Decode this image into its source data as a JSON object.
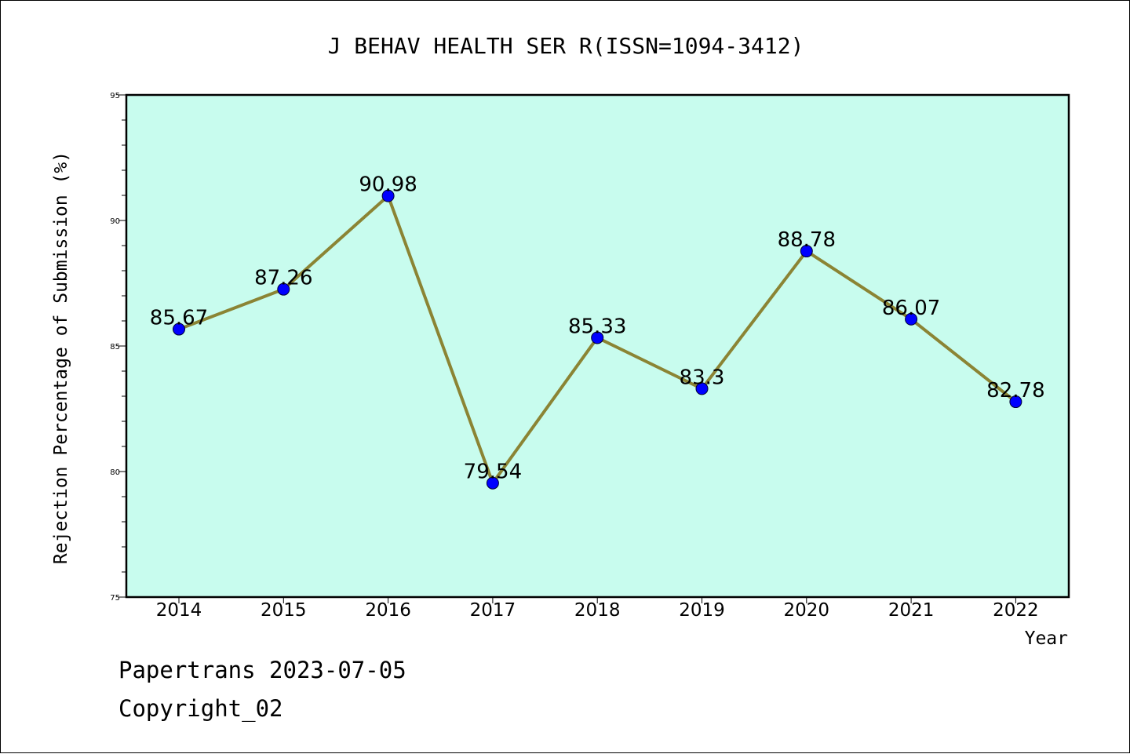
{
  "chart_data": {
    "type": "line",
    "title": "J BEHAV HEALTH SER R(ISSN=1094-3412)",
    "xlabel": "Year",
    "ylabel": "Rejection Percentage of Submission (%)",
    "categories": [
      "2014",
      "2015",
      "2016",
      "2017",
      "2018",
      "2019",
      "2020",
      "2021",
      "2022"
    ],
    "series": [
      {
        "values": [
          85.67,
          87.26,
          90.98,
          79.54,
          85.33,
          83.3,
          88.78,
          86.07,
          82.78
        ],
        "labels": [
          "85.67",
          "87.26",
          "90.98",
          "79.54",
          "85.33",
          "83.3",
          "88.78",
          "86.07",
          "82.78"
        ]
      }
    ],
    "ylim": [
      75,
      95
    ],
    "yticks": [
      75,
      80,
      85,
      90,
      95
    ],
    "grid": false,
    "legend": "none",
    "colors": {
      "plot_background": "#c8fcee",
      "line": "#8b8434",
      "marker": "#0000ff"
    }
  },
  "footer": {
    "date_text": "Papertrans 2023-07-05",
    "copyright_text": "Copyright_02"
  }
}
